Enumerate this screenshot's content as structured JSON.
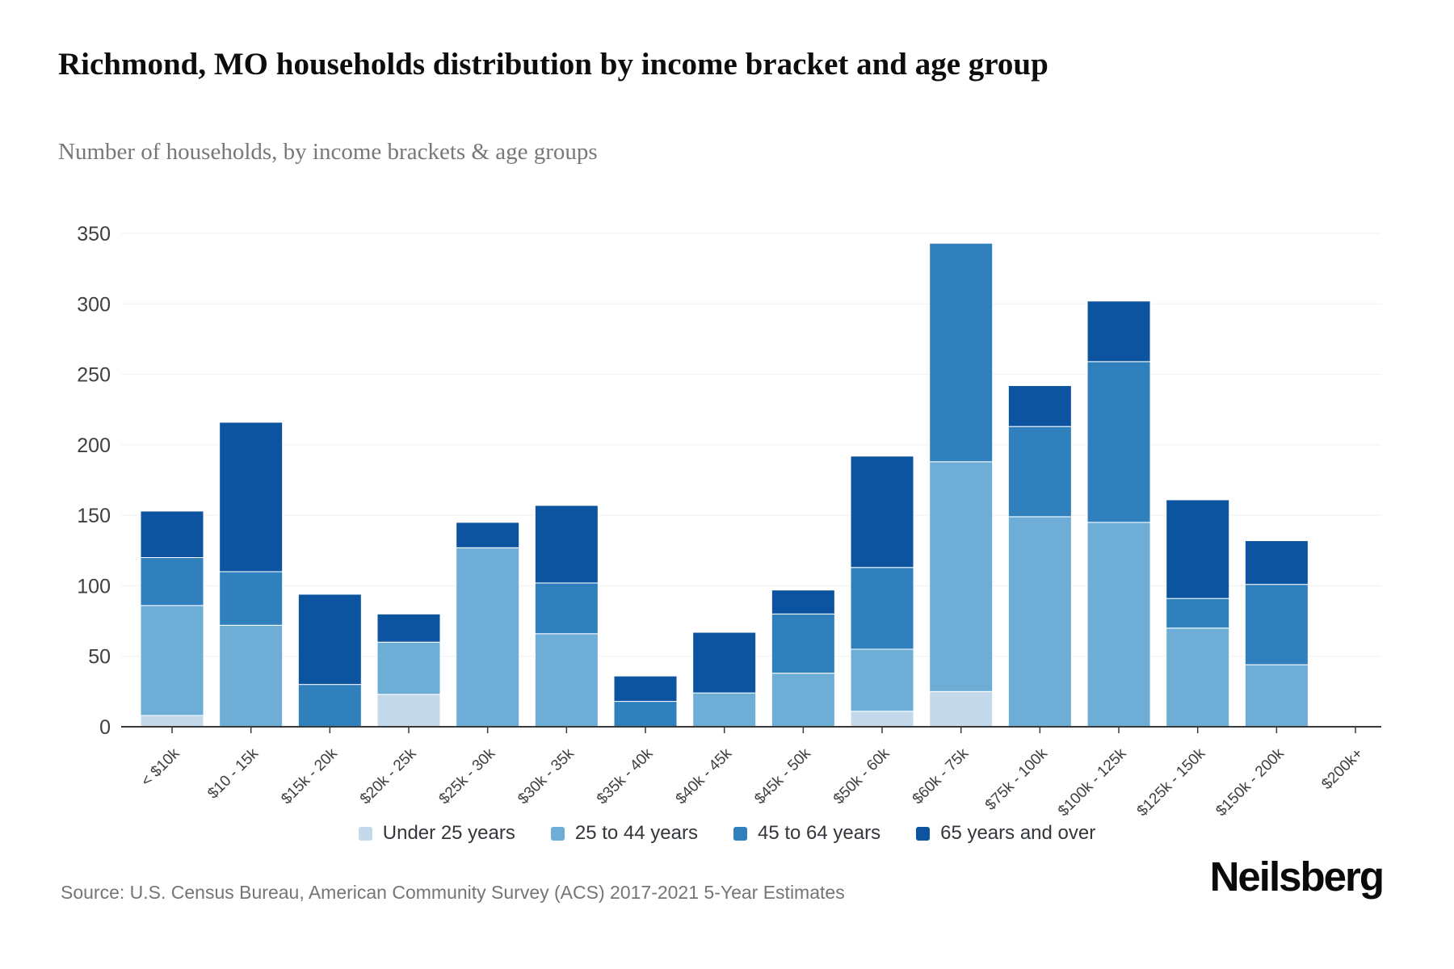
{
  "header": {
    "title": "Richmond, MO households distribution by income bracket and age group",
    "subtitle": "Number of households, by income brackets & age groups"
  },
  "chart_data": {
    "type": "bar",
    "stacked": true,
    "categories": [
      "< $10k",
      "$10 - 15k",
      "$15k - 20k",
      "$20k - 25k",
      "$25k - 30k",
      "$30k - 35k",
      "$35k - 40k",
      "$40k - 45k",
      "$45k - 50k",
      "$50k - 60k",
      "$60k - 75k",
      "$75k - 100k",
      "$100k - 125k",
      "$125k - 150k",
      "$150k - 200k",
      "$200k+"
    ],
    "series": [
      {
        "name": "Under 25 years",
        "color": "#c4daeb",
        "values": [
          8,
          0,
          0,
          23,
          0,
          0,
          0,
          0,
          0,
          11,
          25,
          0,
          0,
          0,
          0,
          0
        ]
      },
      {
        "name": "25 to 44 years",
        "color": "#6eadd6",
        "values": [
          78,
          72,
          0,
          37,
          127,
          66,
          0,
          24,
          38,
          44,
          163,
          149,
          145,
          70,
          44,
          0
        ]
      },
      {
        "name": "45 to 64 years",
        "color": "#2f80bd",
        "values": [
          34,
          38,
          30,
          0,
          0,
          36,
          18,
          0,
          42,
          58,
          155,
          64,
          114,
          21,
          57,
          0
        ]
      },
      {
        "name": "65 years and over",
        "color": "#0c54a0",
        "values": [
          33,
          106,
          64,
          20,
          18,
          55,
          18,
          43,
          17,
          79,
          0,
          29,
          43,
          70,
          31,
          0
        ]
      }
    ],
    "totals": [
      153,
      216,
      94,
      80,
      145,
      157,
      36,
      67,
      97,
      192,
      343,
      242,
      302,
      161,
      132,
      0
    ],
    "title": "Richmond, MO households distribution by income bracket and age group",
    "xlabel": "",
    "ylabel": "",
    "ylim": [
      0,
      350
    ],
    "ytick_step": 50,
    "yticks": [
      0,
      50,
      100,
      150,
      200,
      250,
      300,
      350
    ],
    "grid": true,
    "legend_position": "bottom"
  },
  "footer": {
    "source": "Source: U.S. Census Bureau, American Community Survey (ACS) 2017-2021 5-Year Estimates",
    "brand": "Neilsberg"
  }
}
